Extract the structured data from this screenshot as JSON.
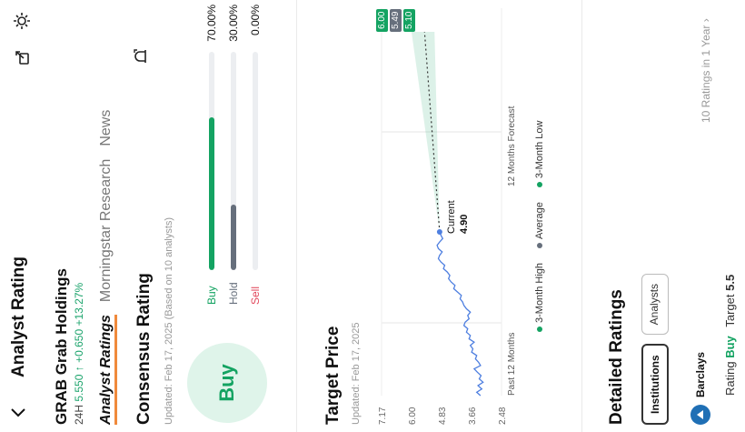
{
  "header": {
    "title": "Analyst Rating"
  },
  "stock": {
    "symbol": "GRAB",
    "name": "Grab Holdings",
    "quote_prefix": "24H",
    "price": "5.550",
    "change": "+0.650",
    "change_pct": "+13.27%"
  },
  "tabs": [
    "Analyst Ratings",
    "Morningstar Research",
    "News"
  ],
  "consensus": {
    "title": "Consensus Rating",
    "updated": "Updated: Feb 17, 2025 (Based on 10 analysts)",
    "rating": "Buy",
    "rows": [
      {
        "label": "Buy",
        "pct_text": "70.00%",
        "fraction": 0.7,
        "color": "#14a362"
      },
      {
        "label": "Hold",
        "pct_text": "30.00%",
        "fraction": 0.3,
        "color": "#666f7c"
      },
      {
        "label": "Sell",
        "pct_text": "0.00%",
        "fraction": 0.0,
        "color": "#e24a5e"
      }
    ]
  },
  "target_price": {
    "title": "Target Price",
    "updated": "Updated: Feb 17, 2025",
    "y_ticks": [
      "7.17",
      "6.00",
      "4.83",
      "3.66",
      "2.48"
    ],
    "period_past": "Past 12 Months",
    "period_forecast": "12 Months Forecast",
    "current_label": "Current",
    "current_value": "4.90",
    "forecast_badges": [
      {
        "value": "6.00",
        "color": "#14a362"
      },
      {
        "value": "5.49",
        "color": "#666f7c"
      },
      {
        "value": "5.10",
        "color": "#14a362"
      }
    ],
    "legend": [
      {
        "label": "3-Month High",
        "color": "#14a362"
      },
      {
        "label": "Average",
        "color": "#666f7c"
      },
      {
        "label": "3-Month Low",
        "color": "#14a362"
      }
    ]
  },
  "chart_data": {
    "type": "line",
    "ylim": [
      2.48,
      7.17
    ],
    "y_ticks": [
      7.17,
      6.0,
      4.83,
      3.66,
      2.48
    ],
    "series": [
      {
        "values": [
          3.3,
          3.45,
          3.25,
          3.4,
          3.2,
          3.35,
          3.28,
          3.42,
          3.55,
          3.3,
          3.38,
          3.5,
          3.45,
          3.65,
          3.6,
          3.7,
          3.55,
          3.75,
          3.7,
          3.85,
          3.8,
          3.95,
          3.9,
          3.75,
          3.8,
          3.7,
          3.85,
          3.95,
          4.0,
          4.1,
          4.05,
          4.2,
          4.35,
          4.3,
          4.45,
          4.55,
          4.5,
          4.6,
          4.75,
          4.7,
          4.85,
          4.95,
          4.9,
          4.8,
          4.95,
          5.0,
          4.9,
          4.78,
          4.85,
          4.9
        ]
      }
    ],
    "forecast": {
      "from": 4.9,
      "high": 6.0,
      "average": 5.49,
      "low": 5.1
    }
  },
  "detailed": {
    "title": "Detailed Ratings",
    "count_text": "10 Ratings in 1 Year",
    "filters": [
      "Institutions",
      "Analysts"
    ],
    "institution": "Barclays",
    "rating_label": "Rating",
    "rating_value": "Buy",
    "target_label": "Target",
    "target_value": "5.5"
  }
}
